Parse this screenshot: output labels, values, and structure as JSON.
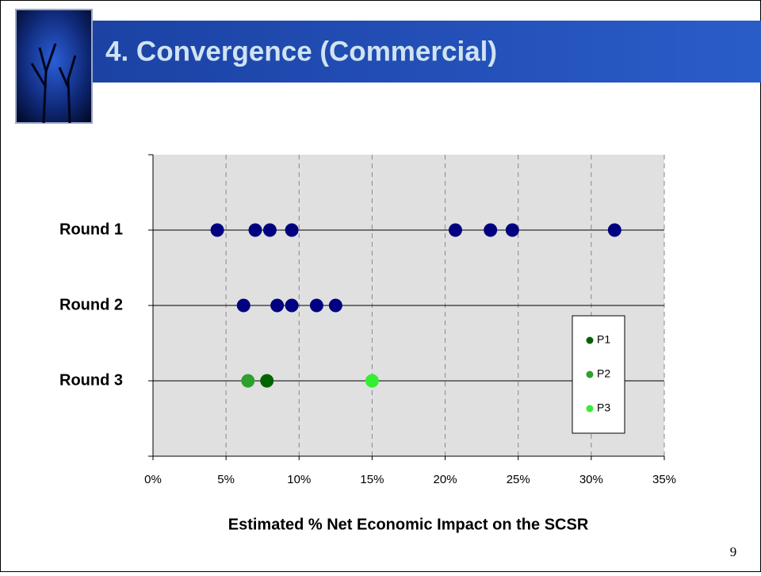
{
  "chart_data": {
    "type": "scatter",
    "title": "4. Convergence (Commercial)",
    "xlabel": "Estimated % Net Economic Impact on the SCSR",
    "page_number": "9",
    "xlim": [
      0,
      35
    ],
    "xticks": [
      {
        "value": 0,
        "label": "0%"
      },
      {
        "value": 5,
        "label": "5%"
      },
      {
        "value": 10,
        "label": "10%"
      },
      {
        "value": 15,
        "label": "15%"
      },
      {
        "value": 20,
        "label": "20%"
      },
      {
        "value": 25,
        "label": "25%"
      },
      {
        "value": 30,
        "label": "30%"
      },
      {
        "value": 35,
        "label": "35%"
      }
    ],
    "ylim": [
      0,
      4
    ],
    "yticks": [
      {
        "value": 3,
        "label": "Round 1"
      },
      {
        "value": 2,
        "label": "Round 2"
      },
      {
        "value": 1,
        "label": "Round 3"
      }
    ],
    "grid": true,
    "legend": "right",
    "series": [
      {
        "color": "#000080",
        "x": [
          4.4,
          7.0,
          8.0,
          9.5,
          20.7,
          23.1,
          24.6,
          31.6
        ],
        "values": [
          3,
          3,
          3,
          3,
          3,
          3,
          3,
          3
        ]
      },
      {
        "color": "#000080",
        "x": [
          6.2,
          8.5,
          9.5,
          11.2,
          12.5
        ],
        "values": [
          2,
          2,
          2,
          2,
          2
        ]
      },
      {
        "name": "P1",
        "color": "#006400",
        "x": [
          7.8
        ],
        "values": [
          1
        ]
      },
      {
        "name": "P2",
        "color": "#2ea02e",
        "x": [
          6.5
        ],
        "values": [
          1
        ]
      },
      {
        "name": "P3",
        "color": "#33ee33",
        "x": [
          15.0
        ],
        "values": [
          1
        ]
      }
    ]
  }
}
